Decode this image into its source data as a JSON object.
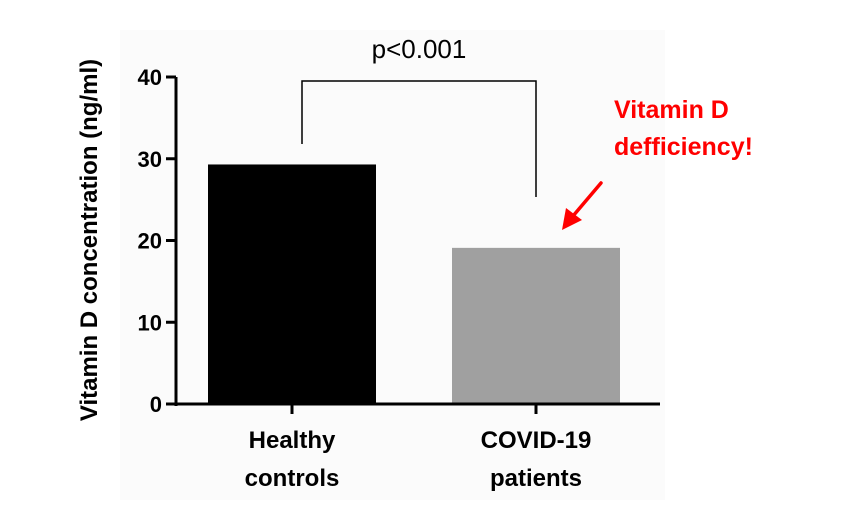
{
  "chart_data": {
    "type": "bar",
    "ylabel": "Vitamin D concentration (ng/ml)",
    "ylim": [
      0,
      40
    ],
    "y_ticks": [
      0,
      10,
      20,
      30,
      40
    ],
    "categories": [
      {
        "lines": [
          "Healthy",
          "controls"
        ]
      },
      {
        "lines": [
          "COVID-19",
          "patients"
        ]
      }
    ],
    "values": [
      29.3,
      19.1
    ],
    "bar_colors": [
      "#000000",
      "#a0a0a0"
    ],
    "significance": {
      "label": "p<0.001",
      "between": [
        0,
        1
      ]
    },
    "annotation": {
      "lines": [
        "Vitamin D",
        "defficiency!"
      ],
      "color": "#ff0000",
      "points_to_category": 1
    },
    "grid": false,
    "legend": "none"
  }
}
